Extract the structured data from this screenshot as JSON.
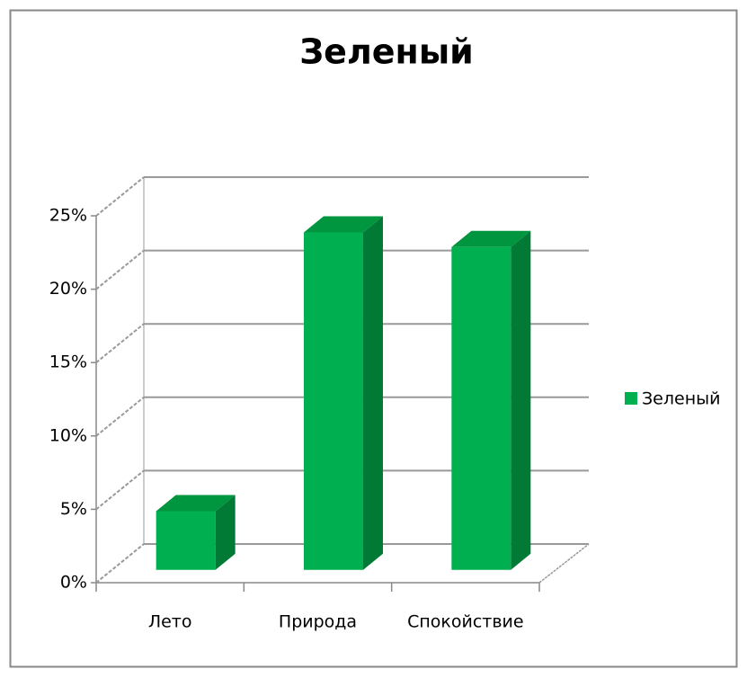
{
  "chart_data": {
    "type": "bar3d",
    "title": "Зеленый",
    "categories": [
      "Лето",
      "Природа",
      "Спокойствие"
    ],
    "series": [
      {
        "name": "Зеленый",
        "color": "#00b050",
        "values": [
          4,
          23,
          22
        ]
      }
    ],
    "ylim": [
      0,
      25
    ],
    "yticks": [
      {
        "value": 0,
        "label": "0%"
      },
      {
        "value": 5,
        "label": "5%"
      },
      {
        "value": 10,
        "label": "10%"
      },
      {
        "value": 15,
        "label": "15%"
      },
      {
        "value": 20,
        "label": "20%"
      },
      {
        "value": 25,
        "label": "25%"
      }
    ],
    "grid": true,
    "legend": "right"
  }
}
